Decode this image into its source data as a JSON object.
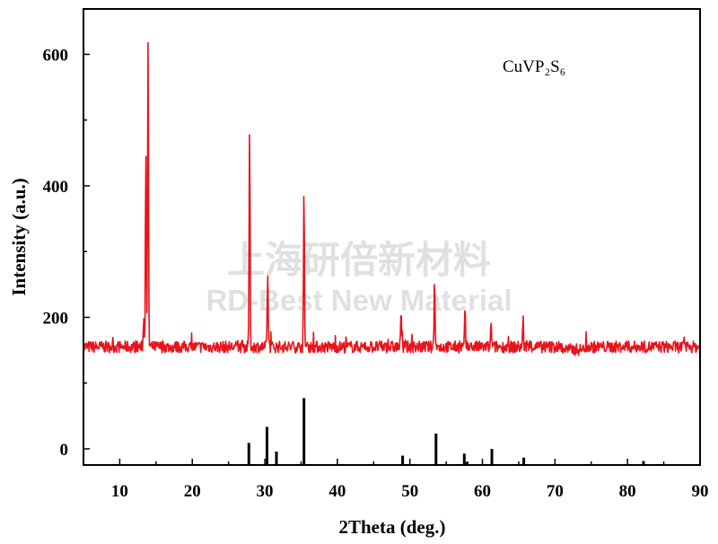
{
  "watermark": {
    "line1": "上海研倍新材料",
    "line2": "RD-Best New Material"
  },
  "chart_data": {
    "type": "line",
    "annotation": "CuVP₂S₆",
    "xlabel": "2Theta (deg.)",
    "ylabel": "Intensity (a.u.)",
    "xlim": [
      5,
      90
    ],
    "ylim": [
      -25,
      670
    ],
    "x_ticks": [
      10,
      20,
      30,
      40,
      50,
      60,
      70,
      80,
      90
    ],
    "y_ticks": [
      0,
      200,
      400,
      600
    ],
    "grid": false,
    "colors": {
      "measured": "#e8141b",
      "reference": "#000000"
    },
    "measured": {
      "baseline": 155,
      "peaks": [
        {
          "x": 13.3,
          "y": 200
        },
        {
          "x": 13.6,
          "y": 450
        },
        {
          "x": 13.9,
          "y": 615
        },
        {
          "x": 27.9,
          "y": 483
        },
        {
          "x": 30.4,
          "y": 270
        },
        {
          "x": 35.4,
          "y": 387
        },
        {
          "x": 48.8,
          "y": 210
        },
        {
          "x": 53.4,
          "y": 262
        },
        {
          "x": 57.6,
          "y": 207
        },
        {
          "x": 61.2,
          "y": 190
        },
        {
          "x": 65.6,
          "y": 197
        }
      ]
    },
    "reference": {
      "lines": [
        {
          "x": 27.8,
          "y": 33
        },
        {
          "x": 30.3,
          "y": 57
        },
        {
          "x": 31.6,
          "y": 20
        },
        {
          "x": 35.4,
          "y": 100
        },
        {
          "x": 49.0,
          "y": 14
        },
        {
          "x": 53.6,
          "y": 47
        },
        {
          "x": 57.5,
          "y": 17
        },
        {
          "x": 57.9,
          "y": 5
        },
        {
          "x": 61.3,
          "y": 24
        },
        {
          "x": 65.7,
          "y": 11
        },
        {
          "x": 82.2,
          "y": 6
        }
      ]
    }
  }
}
